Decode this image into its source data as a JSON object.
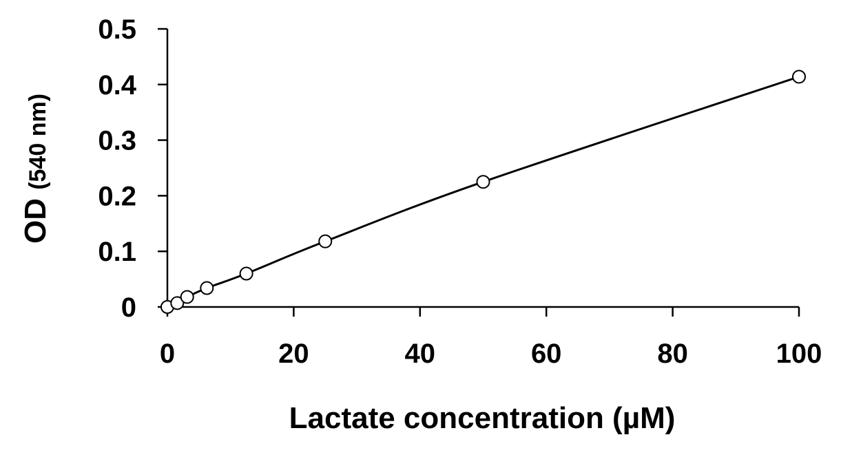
{
  "chart_data": {
    "type": "scatter",
    "title": "",
    "xlabel": "Lactate concentration (µM)",
    "ylabel_main": "OD ",
    "ylabel_unit": "(540 nm)",
    "xlim": [
      0,
      100
    ],
    "ylim": [
      0,
      0.5
    ],
    "x_ticks": [
      0,
      20,
      40,
      60,
      80,
      100
    ],
    "x_tick_labels": [
      "0",
      "20",
      "40",
      "60",
      "80",
      "100"
    ],
    "y_ticks": [
      0,
      0.1,
      0.2,
      0.3,
      0.4,
      0.5
    ],
    "y_tick_labels": [
      "0",
      "0.1",
      "0.2",
      "0.3",
      "0.4",
      "0.5"
    ],
    "grid": false,
    "legend": "none",
    "series": [
      {
        "x": [
          0,
          1.56,
          3.13,
          6.25,
          12.5,
          25,
          50,
          100
        ],
        "y": [
          0.0,
          0.007,
          0.018,
          0.034,
          0.06,
          0.118,
          0.225,
          0.414
        ],
        "marker": "open-circle",
        "line": "smooth-fit"
      }
    ]
  }
}
